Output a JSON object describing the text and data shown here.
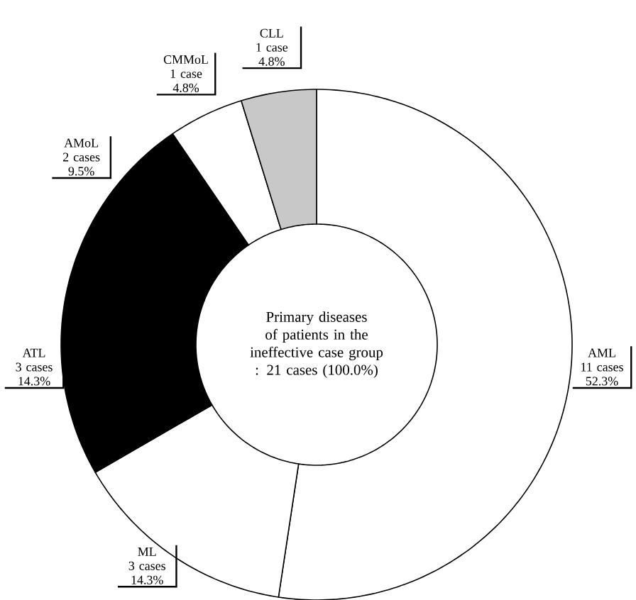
{
  "chart_data": {
    "type": "donut",
    "title": "Primary diseases of patients in the ineffective case group : 21 cases (100.0%)",
    "categories": [
      "AML",
      "ML",
      "ATL",
      "AMoL",
      "CMMoL",
      "CLL"
    ],
    "values": [
      11,
      3,
      3,
      2,
      1,
      1
    ],
    "value_labels": [
      "11 cases 52.3%",
      "3 cases 14.3%",
      "3 cases 14.3%",
      "2 cases 9.5%",
      "1 case 4.8%",
      "1 case 4.8%"
    ],
    "colors": [
      "#ffffff",
      "#ffffff",
      "#000000",
      "#000000",
      "#ffffff",
      "#c8c8c8"
    ]
  }
}
